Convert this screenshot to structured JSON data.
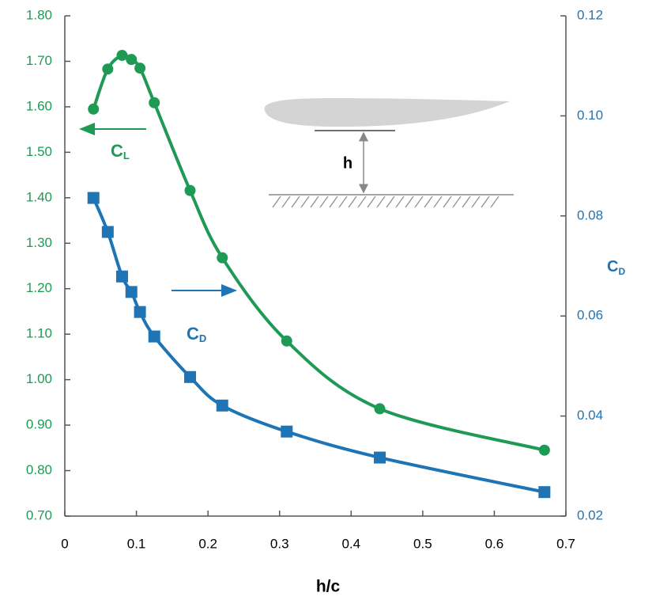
{
  "chart_data": {
    "type": "line",
    "x_label": "h/c",
    "y2_label": {
      "text": "C",
      "subscript": "D"
    },
    "xlim": [
      0,
      0.7
    ],
    "xticks": [
      0,
      0.1,
      0.2,
      0.3,
      0.4,
      0.5,
      0.6,
      0.7
    ],
    "ylim": [
      0.7,
      1.8
    ],
    "yticks": [
      {
        "value": 0.7,
        "label": "0.70"
      },
      {
        "value": 0.8,
        "label": "0.80"
      },
      {
        "value": 0.9,
        "label": "0.90"
      },
      {
        "value": 1.0,
        "label": "1.00"
      },
      {
        "value": 1.1,
        "label": "1.10"
      },
      {
        "value": 1.2,
        "label": "1.20"
      },
      {
        "value": 1.3,
        "label": "1.30"
      },
      {
        "value": 1.4,
        "label": "1.40"
      },
      {
        "value": 1.5,
        "label": "1.50"
      },
      {
        "value": 1.6,
        "label": "1.60"
      },
      {
        "value": 1.7,
        "label": "1.70"
      },
      {
        "value": 1.8,
        "label": "1.80"
      }
    ],
    "y2lim": [
      0.02,
      0.12
    ],
    "y2ticks": [
      0.02,
      0.04,
      0.06,
      0.08,
      {
        "value": 0.1,
        "label": "0.10"
      },
      0.12
    ],
    "y_tick_color": "#1f9a55",
    "y2_tick_color": "#1f74b5",
    "series": [
      {
        "color": "#1f9a55",
        "marker": "circle",
        "x": [
          0.04,
          0.06,
          0.08,
          0.093,
          0.105,
          0.125,
          0.175,
          0.22,
          0.31,
          0.44,
          0.67
        ],
        "values": [
          1.595,
          1.683,
          1.713,
          1.704,
          1.685,
          1.609,
          1.416,
          1.268,
          1.085,
          0.936,
          0.845
        ]
      },
      {
        "color": "#1f74b5",
        "marker": "square",
        "axis": "y2",
        "x": [
          0.04,
          0.06,
          0.08,
          0.093,
          0.105,
          0.125,
          0.175,
          0.22,
          0.31,
          0.44,
          0.67
        ],
        "values": [
          0.0836,
          0.0768,
          0.0679,
          0.0648,
          0.0608,
          0.0559,
          0.0478,
          0.0421,
          0.0369,
          0.0317,
          0.0248
        ]
      }
    ],
    "annotations": [
      {
        "text": "C",
        "subscript": "L"
      },
      {
        "text": "C",
        "subscript": "D"
      }
    ],
    "inset_label": "h"
  }
}
